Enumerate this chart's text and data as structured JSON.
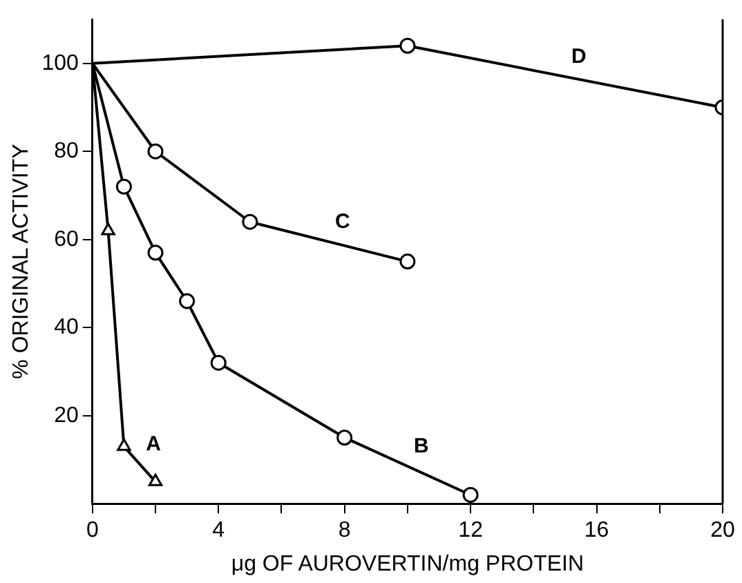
{
  "chart_data": {
    "type": "line",
    "xlabel": "μg OF AUROVERTIN/mg PROTEIN",
    "ylabel": "% ORIGINAL ACTIVITY",
    "xlim": [
      0,
      20
    ],
    "ylim": [
      0,
      110
    ],
    "xticks": [
      0,
      {
        "value": 2,
        "label": null
      },
      4,
      {
        "value": 6,
        "label": null
      },
      8,
      {
        "value": 10,
        "label": null
      },
      12,
      {
        "value": 14,
        "label": null
      },
      16,
      {
        "value": 18,
        "label": null
      },
      20
    ],
    "yticks": [
      20,
      40,
      60,
      80,
      100
    ],
    "grid": false,
    "legend": false,
    "line_style": "solid",
    "series": [
      {
        "name": "A",
        "color": "#000000",
        "marker": "triangle",
        "x": [
          0,
          0.5,
          1,
          2
        ],
        "values": [
          100,
          62,
          13,
          5
        ]
      },
      {
        "name": "B",
        "color": "#000000",
        "marker": "circle",
        "x": [
          0,
          1,
          2,
          3,
          4,
          8,
          12
        ],
        "values": [
          100,
          72,
          57,
          46,
          32,
          15,
          2
        ]
      },
      {
        "name": "C",
        "color": "#000000",
        "marker": "circle",
        "x": [
          0,
          2,
          5,
          10
        ],
        "values": [
          100,
          80,
          64,
          55
        ]
      },
      {
        "name": "D",
        "color": "#000000",
        "marker": "circle",
        "x": [
          0,
          10,
          20
        ],
        "values": [
          100,
          104,
          90
        ]
      }
    ]
  }
}
